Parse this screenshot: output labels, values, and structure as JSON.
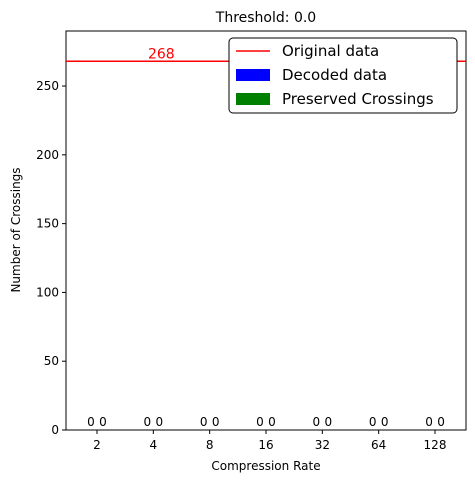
{
  "chart_data": {
    "type": "bar",
    "title": "Threshold: 0.0",
    "xlabel": "Compression Rate",
    "ylabel": "Number of Crossings",
    "categories": [
      "2",
      "4",
      "8",
      "16",
      "32",
      "64",
      "128"
    ],
    "ylim": [
      0,
      290
    ],
    "yticks": [
      0,
      50,
      100,
      150,
      200,
      250
    ],
    "series": [
      {
        "name": "Decoded data",
        "color": "#0000ff",
        "values": [
          0,
          0,
          0,
          0,
          0,
          0,
          0
        ]
      },
      {
        "name": "Preserved Crossings",
        "color": "#008000",
        "values": [
          0,
          0,
          0,
          0,
          0,
          0,
          0
        ]
      }
    ],
    "reference_line": {
      "name": "Original data",
      "value": 268,
      "label": "268",
      "color": "#ff0000"
    },
    "bar_labels": [
      [
        "0",
        "0"
      ],
      [
        "0",
        "0"
      ],
      [
        "0",
        "0"
      ],
      [
        "0",
        "0"
      ],
      [
        "0",
        "0"
      ],
      [
        "0",
        "0"
      ],
      [
        "0",
        "0"
      ]
    ],
    "legend": {
      "placement": "upper-right",
      "entries": [
        {
          "label": "Original data",
          "kind": "line",
          "color": "#ff0000"
        },
        {
          "label": "Decoded data",
          "kind": "patch",
          "color": "#0000ff"
        },
        {
          "label": "Preserved Crossings",
          "kind": "patch",
          "color": "#008000"
        }
      ]
    },
    "grid": false
  }
}
